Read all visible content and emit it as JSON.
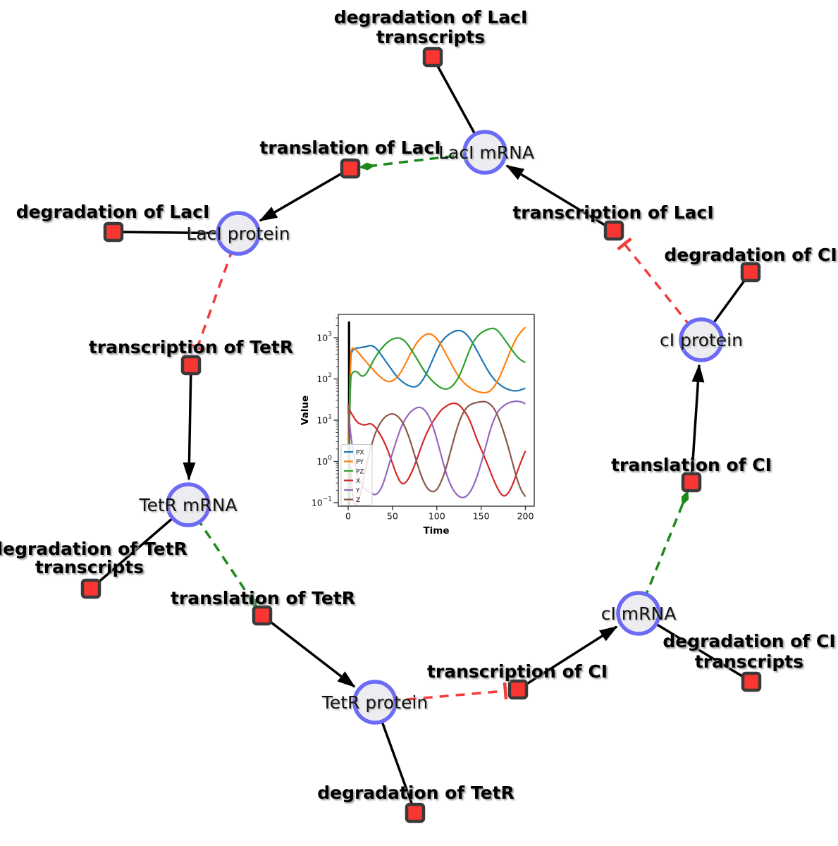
{
  "diagram": {
    "species": {
      "laci_mrna": {
        "label": "LacI mRNA"
      },
      "laci_protein": {
        "label": "LacI protein"
      },
      "tetr_mrna": {
        "label": "TetR mRNA"
      },
      "tetr_protein": {
        "label": "TetR protein"
      },
      "ci_mrna": {
        "label": "cI mRNA"
      },
      "ci_protein": {
        "label": "cI protein"
      }
    },
    "reactions": {
      "deg_laci_transcripts": {
        "line1": "degradation of LacI",
        "line2": "transcripts"
      },
      "translation_laci": {
        "label": "translation of LacI"
      },
      "transcription_laci": {
        "label": "transcription of LacI"
      },
      "deg_laci": {
        "label": "degradation of LacI"
      },
      "deg_ci": {
        "label": "degradation of CI"
      },
      "transcription_tetr": {
        "label": "transcription of TetR"
      },
      "deg_tetr_transcripts": {
        "line1": "degradation of TetR",
        "line2": "transcripts"
      },
      "translation_tetr": {
        "label": "translation of TetR"
      },
      "deg_tetr": {
        "label": "degradation of TetR"
      },
      "transcription_ci": {
        "label": "transcription of CI"
      },
      "deg_ci_transcripts": {
        "line1": "degradation of CI",
        "line2": "transcripts"
      },
      "translation_ci": {
        "label": "translation of CI"
      }
    },
    "colors": {
      "species_fill": "#ededf1",
      "species_border": "#6b6bf5",
      "reaction_fill": "#fa3632",
      "reaction_border": "#3a3a3a",
      "activation_edge": "#1b8a1b",
      "inhibition_edge": "#f23b3b",
      "default_edge": "#000000"
    }
  },
  "chart_data": {
    "type": "line",
    "title": "",
    "xlabel": "Time",
    "ylabel": "Value",
    "yscale": "log",
    "xlim": [
      -11,
      210
    ],
    "ylim": [
      0.08,
      3600
    ],
    "x_ticks": [
      0,
      50,
      100,
      150,
      200
    ],
    "y_tick_base": "10",
    "y_tick_exponents": [
      -1,
      0,
      1,
      2,
      3
    ],
    "legend_position": "lower left",
    "vline_x": 1,
    "x": [
      0,
      2,
      5,
      10,
      15,
      20,
      25,
      30,
      35,
      40,
      45,
      50,
      55,
      60,
      65,
      70,
      75,
      80,
      85,
      90,
      95,
      100,
      105,
      110,
      115,
      120,
      125,
      130,
      135,
      140,
      145,
      150,
      155,
      160,
      165,
      170,
      175,
      180,
      185,
      190,
      195,
      200
    ],
    "series": [
      {
        "name": "PX",
        "color": "#1f77b4",
        "values": [
          0.1,
          320,
          525,
          560,
          580,
          600,
          660,
          600,
          450,
          316,
          224,
          158,
          112,
          89,
          74,
          66,
          63,
          71,
          100,
          158,
          282,
          500,
          790,
          1050,
          1260,
          1450,
          1510,
          1410,
          1120,
          790,
          500,
          316,
          200,
          132,
          95,
          76,
          63,
          56,
          52,
          51,
          54,
          60
        ]
      },
      {
        "name": "PY",
        "color": "#ff7f0e",
        "values": [
          0.1,
          400,
          600,
          480,
          355,
          263,
          200,
          151,
          117,
          96,
          85,
          89,
          107,
          151,
          240,
          400,
          630,
          890,
          1120,
          1260,
          1200,
          955,
          660,
          417,
          263,
          166,
          112,
          83,
          66,
          56,
          50,
          47,
          46,
          50,
          66,
          100,
          178,
          330,
          600,
          1000,
          1410,
          1800
        ]
      },
      {
        "name": "PZ",
        "color": "#2ca02c",
        "values": [
          0.1,
          100,
          150,
          155,
          112,
          126,
          200,
          320,
          470,
          630,
          800,
          930,
          1000,
          955,
          795,
          560,
          380,
          251,
          166,
          117,
          89,
          71,
          60,
          56,
          60,
          76,
          112,
          200,
          400,
          710,
          1050,
          1320,
          1510,
          1660,
          1700,
          1410,
          1000,
          710,
          500,
          355,
          282,
          251
        ]
      },
      {
        "name": "X",
        "color": "#d62728",
        "values": [
          20,
          17,
          13,
          8.9,
          7.8,
          7.6,
          8.5,
          7.1,
          5.0,
          3.2,
          1.8,
          0.9,
          0.45,
          0.28,
          0.3,
          0.45,
          0.8,
          1.6,
          3.2,
          5.6,
          8.9,
          12.6,
          17.8,
          21.4,
          25,
          26,
          24,
          17.8,
          12.6,
          7.1,
          3.5,
          2.0,
          1.1,
          0.6,
          0.32,
          0.19,
          0.14,
          0.16,
          0.25,
          0.5,
          1.0,
          1.8
        ]
      },
      {
        "name": "Y",
        "color": "#9467bd",
        "values": [
          22,
          6.3,
          2.0,
          0.5,
          0.28,
          0.2,
          0.18,
          0.15,
          0.18,
          0.3,
          0.7,
          1.6,
          3.5,
          7.1,
          11.2,
          15.8,
          19,
          21,
          19,
          14,
          7.9,
          3.5,
          1.4,
          0.56,
          0.28,
          0.18,
          0.14,
          0.13,
          0.15,
          0.22,
          0.4,
          0.89,
          2.2,
          5.6,
          11.2,
          17.8,
          22,
          26,
          28,
          29,
          28,
          25
        ]
      },
      {
        "name": "Z",
        "color": "#8c564b",
        "values": [
          25,
          1.0,
          0.12,
          0.08,
          0.2,
          0.7,
          2.0,
          4.5,
          7.9,
          11.2,
          13.5,
          14.5,
          13,
          10,
          6.3,
          3.2,
          1.4,
          0.63,
          0.32,
          0.21,
          0.18,
          0.2,
          0.32,
          0.63,
          1.6,
          4.0,
          8.9,
          15.8,
          22,
          25,
          27,
          28,
          28.5,
          25,
          19,
          11.2,
          5.6,
          2.5,
          1.0,
          0.4,
          0.2,
          0.14
        ]
      }
    ]
  }
}
